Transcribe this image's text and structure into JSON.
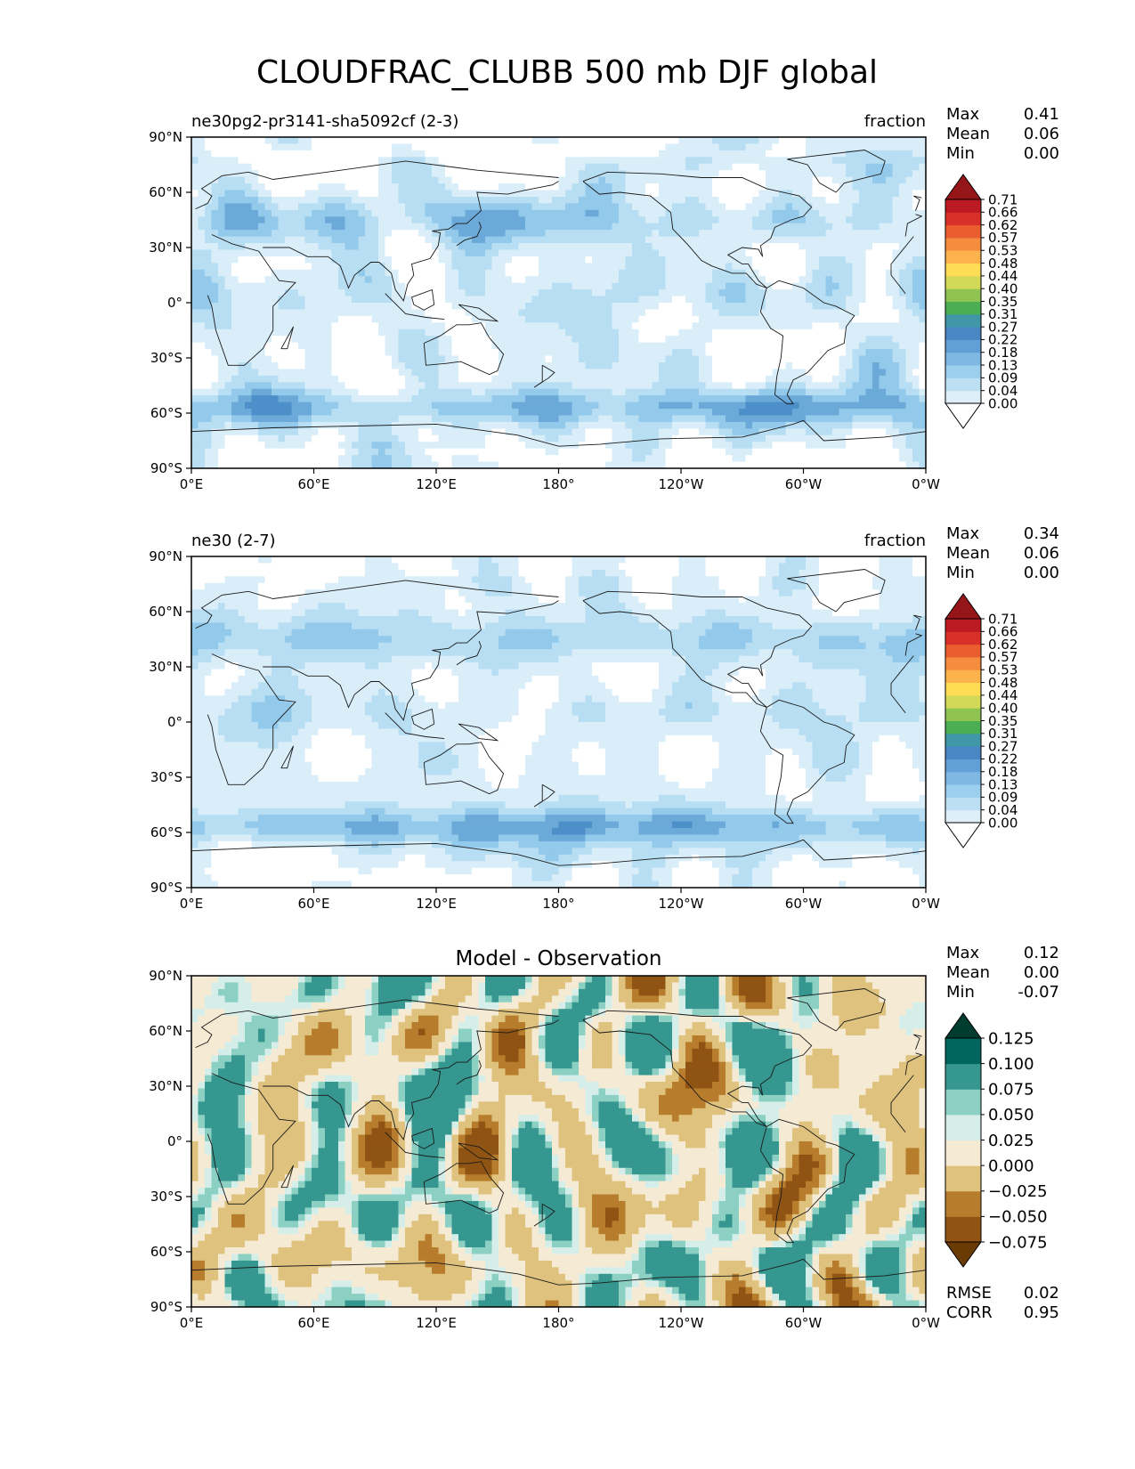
{
  "figure": {
    "title": "CLOUDFRAC_CLUBB 500 mb DJF global"
  },
  "panels": [
    {
      "id": "test",
      "left_title": "ne30pg2-pr3141-sha5092cf (2-3)",
      "center_title": "",
      "right_title": "fraction",
      "stats": [
        {
          "label": "Max",
          "value": "0.41"
        },
        {
          "label": "Mean",
          "value": "0.06"
        },
        {
          "label": "Min",
          "value": "0.00"
        }
      ],
      "colorbar": {
        "colors": [
          "#ffffff",
          "#deeff9",
          "#bddff3",
          "#9ccfee",
          "#7fb9e3",
          "#639fd7",
          "#4a86c4",
          "#3f97a8",
          "#4cae52",
          "#8fc453",
          "#d1d957",
          "#fedd55",
          "#fdb34c",
          "#f68c3e",
          "#ea5d2f",
          "#d83129",
          "#bc1a22",
          "#961519"
        ],
        "extend": "both",
        "tick_labels": [
          "0.00",
          "0.04",
          "0.09",
          "0.13",
          "0.18",
          "0.22",
          "0.27",
          "0.31",
          "0.35",
          "0.40",
          "0.44",
          "0.48",
          "0.53",
          "0.57",
          "0.62",
          "0.66",
          "0.71"
        ]
      },
      "map_colors": [
        "#ffffff",
        "#d9eef9",
        "#b7def3",
        "#93c9eb",
        "#6ba9d9",
        "#4c8fc9",
        "#4caf55"
      ]
    },
    {
      "id": "reference",
      "left_title": "ne30 (2-7)",
      "center_title": "",
      "right_title": "fraction",
      "stats": [
        {
          "label": "Max",
          "value": "0.34"
        },
        {
          "label": "Mean",
          "value": "0.06"
        },
        {
          "label": "Min",
          "value": "0.00"
        }
      ],
      "colorbar": {
        "colors": [
          "#ffffff",
          "#deeff9",
          "#bddff3",
          "#9ccfee",
          "#7fb9e3",
          "#639fd7",
          "#4a86c4",
          "#3f97a8",
          "#4cae52",
          "#8fc453",
          "#d1d957",
          "#fedd55",
          "#fdb34c",
          "#f68c3e",
          "#ea5d2f",
          "#d83129",
          "#bc1a22",
          "#961519"
        ],
        "extend": "both",
        "tick_labels": [
          "0.00",
          "0.04",
          "0.09",
          "0.13",
          "0.18",
          "0.22",
          "0.27",
          "0.31",
          "0.35",
          "0.40",
          "0.44",
          "0.48",
          "0.53",
          "0.57",
          "0.62",
          "0.66",
          "0.71"
        ]
      },
      "map_colors": [
        "#ffffff",
        "#d9eef9",
        "#b7def3",
        "#93c9eb",
        "#6ba9d9",
        "#4c8fc9",
        "#4caf55"
      ]
    },
    {
      "id": "diff",
      "left_title": "",
      "center_title": "Model - Observation",
      "right_title": "",
      "stats": [
        {
          "label": "Max",
          "value": "0.12"
        },
        {
          "label": "Mean",
          "value": "0.00"
        },
        {
          "label": "Min",
          "value": "-0.07"
        }
      ],
      "colorbar": {
        "colors": [
          "#6b3b06",
          "#8f5413",
          "#b87d2c",
          "#dfc27d",
          "#f5ebd4",
          "#d6eeea",
          "#8bd0c3",
          "#35978f",
          "#01665e",
          "#003c30"
        ],
        "extend": "both",
        "tick_labels": [
          "−0.075",
          "−0.050",
          "−0.025",
          "0.000",
          "0.025",
          "0.050",
          "0.075",
          "0.100",
          "0.125"
        ]
      },
      "map_colors": [
        "#f5ebd4",
        "#dfc27d",
        "#b87d2c",
        "#8f5413",
        "#d6eeea",
        "#8bd0c3",
        "#35978f"
      ],
      "error_stats": [
        {
          "label": "RMSE",
          "value": "0.02"
        },
        {
          "label": "CORR",
          "value": "0.95"
        }
      ]
    }
  ],
  "axes": {
    "x_ticks": [
      "0°E",
      "60°E",
      "120°E",
      "180°",
      "120°W",
      "60°W",
      "0°W"
    ],
    "y_ticks": [
      "90°N",
      "60°N",
      "30°N",
      "0°",
      "30°S",
      "60°S",
      "90°S"
    ]
  },
  "coastline_color": "#1a1a1a"
}
